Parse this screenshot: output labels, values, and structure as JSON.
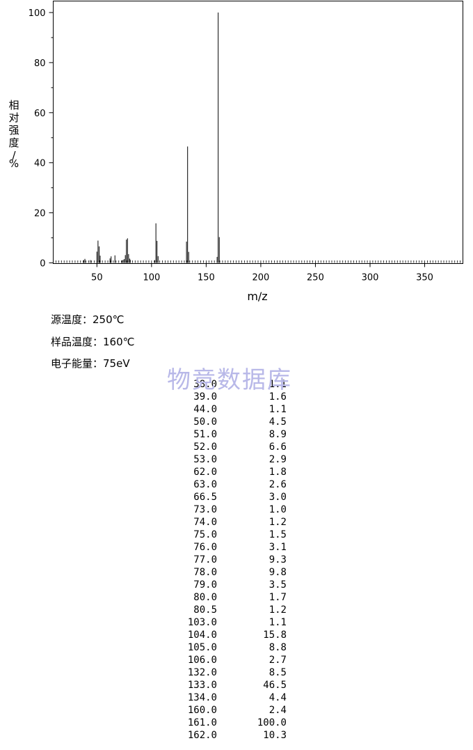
{
  "chart_data": {
    "type": "bar",
    "ylabel": "相对强度/%",
    "xlabel": "m/z",
    "xlim": [
      10,
      385
    ],
    "ylim": [
      0,
      100
    ],
    "x_ticks": [
      "50",
      "100",
      "150",
      "200",
      "250",
      "300",
      "350"
    ],
    "y_ticks": [
      "0",
      "20",
      "40",
      "60",
      "80",
      "100"
    ],
    "peaks": [
      {
        "mz": 38.0,
        "intensity": 1.1
      },
      {
        "mz": 39.0,
        "intensity": 1.6
      },
      {
        "mz": 44.0,
        "intensity": 1.1
      },
      {
        "mz": 50.0,
        "intensity": 4.5
      },
      {
        "mz": 51.0,
        "intensity": 8.9
      },
      {
        "mz": 52.0,
        "intensity": 6.6
      },
      {
        "mz": 53.0,
        "intensity": 2.9
      },
      {
        "mz": 62.0,
        "intensity": 1.8
      },
      {
        "mz": 63.0,
        "intensity": 2.6
      },
      {
        "mz": 66.5,
        "intensity": 3.0
      },
      {
        "mz": 73.0,
        "intensity": 1.0
      },
      {
        "mz": 74.0,
        "intensity": 1.2
      },
      {
        "mz": 75.0,
        "intensity": 1.5
      },
      {
        "mz": 76.0,
        "intensity": 3.1
      },
      {
        "mz": 77.0,
        "intensity": 9.3
      },
      {
        "mz": 78.0,
        "intensity": 9.8
      },
      {
        "mz": 79.0,
        "intensity": 3.5
      },
      {
        "mz": 80.0,
        "intensity": 1.7
      },
      {
        "mz": 80.5,
        "intensity": 1.2
      },
      {
        "mz": 103.0,
        "intensity": 1.1
      },
      {
        "mz": 104.0,
        "intensity": 15.8
      },
      {
        "mz": 105.0,
        "intensity": 8.8
      },
      {
        "mz": 106.0,
        "intensity": 2.7
      },
      {
        "mz": 132.0,
        "intensity": 8.5
      },
      {
        "mz": 133.0,
        "intensity": 46.5
      },
      {
        "mz": 134.0,
        "intensity": 4.4
      },
      {
        "mz": 160.0,
        "intensity": 2.4
      },
      {
        "mz": 161.0,
        "intensity": 100.0
      },
      {
        "mz": 162.0,
        "intensity": 10.3
      }
    ]
  },
  "conditions": {
    "source_temp": "源温度：250℃",
    "sample_temp": "样品温度：160℃",
    "electron_energy": "电子能量：75eV"
  },
  "watermark": "物竞数据库",
  "table_rows": [
    {
      "mz": "38.0",
      "intensity": "1.1"
    },
    {
      "mz": "39.0",
      "intensity": "1.6"
    },
    {
      "mz": "44.0",
      "intensity": "1.1"
    },
    {
      "mz": "50.0",
      "intensity": "4.5"
    },
    {
      "mz": "51.0",
      "intensity": "8.9"
    },
    {
      "mz": "52.0",
      "intensity": "6.6"
    },
    {
      "mz": "53.0",
      "intensity": "2.9"
    },
    {
      "mz": "62.0",
      "intensity": "1.8"
    },
    {
      "mz": "63.0",
      "intensity": "2.6"
    },
    {
      "mz": "66.5",
      "intensity": "3.0"
    },
    {
      "mz": "73.0",
      "intensity": "1.0"
    },
    {
      "mz": "74.0",
      "intensity": "1.2"
    },
    {
      "mz": "75.0",
      "intensity": "1.5"
    },
    {
      "mz": "76.0",
      "intensity": "3.1"
    },
    {
      "mz": "77.0",
      "intensity": "9.3"
    },
    {
      "mz": "78.0",
      "intensity": "9.8"
    },
    {
      "mz": "79.0",
      "intensity": "3.5"
    },
    {
      "mz": "80.0",
      "intensity": "1.7"
    },
    {
      "mz": "80.5",
      "intensity": "1.2"
    },
    {
      "mz": "103.0",
      "intensity": "1.1"
    },
    {
      "mz": "104.0",
      "intensity": "15.8"
    },
    {
      "mz": "105.0",
      "intensity": "8.8"
    },
    {
      "mz": "106.0",
      "intensity": "2.7"
    },
    {
      "mz": "132.0",
      "intensity": "8.5"
    },
    {
      "mz": "133.0",
      "intensity": "46.5"
    },
    {
      "mz": "134.0",
      "intensity": "4.4"
    },
    {
      "mz": "160.0",
      "intensity": "2.4"
    },
    {
      "mz": "161.0",
      "intensity": "100.0"
    },
    {
      "mz": "162.0",
      "intensity": "10.3"
    }
  ]
}
